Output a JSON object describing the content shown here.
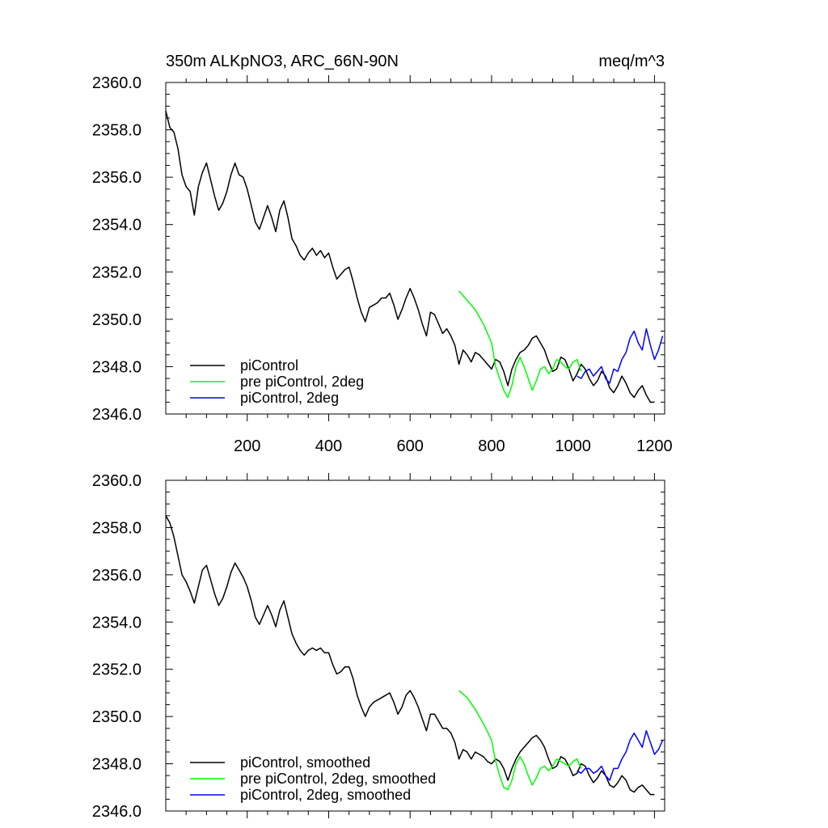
{
  "chart_data": [
    {
      "type": "line",
      "title": "350m ALKpNO3, ARC_66N-90N",
      "units": "meq/m^3",
      "xlim": [
        0,
        1225
      ],
      "ylim": [
        2346.0,
        2360.0
      ],
      "xticks": [
        200,
        400,
        600,
        800,
        1000,
        1200
      ],
      "yticks": [
        "2346.0",
        "2348.0",
        "2350.0",
        "2352.0",
        "2354.0",
        "2356.0",
        "2358.0",
        "2360.0"
      ],
      "legend_position": "bottom-left",
      "series": [
        {
          "name": "piControl",
          "color": "#000000",
          "x": [
            0,
            10,
            20,
            30,
            40,
            50,
            60,
            70,
            80,
            90,
            100,
            110,
            120,
            130,
            140,
            150,
            160,
            170,
            180,
            190,
            200,
            210,
            220,
            230,
            240,
            250,
            260,
            270,
            280,
            290,
            300,
            310,
            320,
            330,
            340,
            350,
            360,
            370,
            380,
            390,
            400,
            410,
            420,
            430,
            440,
            450,
            460,
            470,
            480,
            490,
            500,
            510,
            520,
            530,
            540,
            550,
            560,
            570,
            580,
            590,
            600,
            610,
            620,
            630,
            640,
            650,
            660,
            670,
            680,
            690,
            700,
            710,
            720,
            730,
            740,
            750,
            760,
            770,
            780,
            790,
            800,
            810,
            820,
            830,
            840,
            850,
            860,
            870,
            880,
            890,
            900,
            910,
            920,
            930,
            940,
            950,
            960,
            970,
            980,
            990,
            1000,
            1010,
            1020,
            1030,
            1040,
            1050,
            1060,
            1070,
            1080,
            1090,
            1100,
            1110,
            1120,
            1130,
            1140,
            1150,
            1160,
            1170,
            1180,
            1190,
            1200
          ],
          "values": [
            2358.8,
            2358.1,
            2357.9,
            2357.2,
            2356.1,
            2355.6,
            2355.4,
            2354.4,
            2355.6,
            2356.2,
            2356.6,
            2355.9,
            2355.2,
            2354.6,
            2354.9,
            2355.4,
            2356.1,
            2356.6,
            2356.1,
            2356.0,
            2355.5,
            2354.8,
            2354.1,
            2353.8,
            2354.3,
            2354.8,
            2354.3,
            2353.7,
            2354.6,
            2355.0,
            2354.3,
            2353.4,
            2353.1,
            2352.7,
            2352.5,
            2352.8,
            2353.0,
            2352.7,
            2352.9,
            2352.6,
            2352.8,
            2352.2,
            2351.7,
            2351.9,
            2352.1,
            2352.2,
            2351.6,
            2350.9,
            2350.3,
            2349.9,
            2350.5,
            2350.6,
            2350.7,
            2350.9,
            2350.9,
            2351.1,
            2350.6,
            2350.0,
            2350.4,
            2350.9,
            2351.3,
            2350.9,
            2350.4,
            2349.8,
            2349.3,
            2350.3,
            2350.2,
            2349.8,
            2349.4,
            2349.6,
            2349.3,
            2348.9,
            2348.1,
            2348.7,
            2348.5,
            2348.2,
            2348.6,
            2348.5,
            2348.3,
            2348.1,
            2347.9,
            2348.3,
            2348.2,
            2347.8,
            2347.2,
            2347.9,
            2348.3,
            2348.6,
            2348.7,
            2348.9,
            2349.2,
            2349.3,
            2349.0,
            2348.7,
            2348.2,
            2347.8,
            2347.9,
            2348.4,
            2348.3,
            2347.9,
            2347.4,
            2347.7,
            2348.1,
            2347.9,
            2347.5,
            2347.2,
            2347.4,
            2347.8,
            2347.6,
            2347.1,
            2346.9,
            2347.2,
            2347.6,
            2347.3,
            2346.9,
            2346.7,
            2347.0,
            2347.2,
            2346.8,
            2346.5,
            2346.5
          ]
        },
        {
          "name": "pre piControl, 2deg",
          "color": "#00ff00",
          "x": [
            720,
            740,
            760,
            780,
            800,
            810,
            820,
            830,
            840,
            850,
            860,
            870,
            880,
            890,
            900,
            910,
            920,
            930,
            940,
            950,
            960,
            970,
            980,
            990,
            1000,
            1010,
            1020
          ],
          "values": [
            2351.2,
            2350.8,
            2350.4,
            2349.8,
            2349.0,
            2348.0,
            2347.5,
            2347.0,
            2346.7,
            2347.2,
            2348.0,
            2348.4,
            2348.0,
            2347.5,
            2347.0,
            2347.4,
            2347.9,
            2348.0,
            2347.7,
            2347.9,
            2348.3,
            2348.2,
            2348.0,
            2347.9,
            2348.2,
            2348.3,
            2347.8
          ]
        },
        {
          "name": "piControl, 2deg",
          "color": "#0000ff",
          "x": [
            1010,
            1020,
            1030,
            1040,
            1050,
            1060,
            1070,
            1080,
            1090,
            1100,
            1110,
            1120,
            1130,
            1140,
            1150,
            1160,
            1170,
            1180,
            1190,
            1200,
            1210,
            1220
          ],
          "values": [
            2347.6,
            2347.5,
            2347.8,
            2347.9,
            2347.6,
            2347.8,
            2348.0,
            2347.5,
            2347.3,
            2347.9,
            2347.8,
            2348.3,
            2348.6,
            2349.2,
            2349.5,
            2349.0,
            2348.7,
            2349.6,
            2348.9,
            2348.3,
            2348.7,
            2349.3
          ]
        }
      ]
    },
    {
      "type": "line",
      "xlim": [
        0,
        1225
      ],
      "ylim": [
        2346.0,
        2360.0
      ],
      "yticks": [
        "2346.0",
        "2348.0",
        "2350.0",
        "2352.0",
        "2354.0",
        "2356.0",
        "2358.0",
        "2360.0"
      ],
      "legend_position": "bottom-left",
      "series": [
        {
          "name": "piControl, smoothed",
          "color": "#000000",
          "x": [
            0,
            10,
            20,
            30,
            40,
            50,
            60,
            70,
            80,
            90,
            100,
            110,
            120,
            130,
            140,
            150,
            160,
            170,
            180,
            190,
            200,
            210,
            220,
            230,
            240,
            250,
            260,
            270,
            280,
            290,
            300,
            310,
            320,
            330,
            340,
            350,
            360,
            370,
            380,
            390,
            400,
            410,
            420,
            430,
            440,
            450,
            460,
            470,
            480,
            490,
            500,
            510,
            520,
            530,
            540,
            550,
            560,
            570,
            580,
            590,
            600,
            610,
            620,
            630,
            640,
            650,
            660,
            670,
            680,
            690,
            700,
            710,
            720,
            730,
            740,
            750,
            760,
            770,
            780,
            790,
            800,
            810,
            820,
            830,
            840,
            850,
            860,
            870,
            880,
            890,
            900,
            910,
            920,
            930,
            940,
            950,
            960,
            970,
            980,
            990,
            1000,
            1010,
            1020,
            1030,
            1040,
            1050,
            1060,
            1070,
            1080,
            1090,
            1100,
            1110,
            1120,
            1130,
            1140,
            1150,
            1160,
            1170,
            1180,
            1190,
            1200
          ],
          "values": [
            2358.5,
            2358.2,
            2357.6,
            2356.8,
            2356.0,
            2355.7,
            2355.3,
            2354.8,
            2355.5,
            2356.2,
            2356.4,
            2355.8,
            2355.2,
            2354.7,
            2355.0,
            2355.5,
            2356.1,
            2356.5,
            2356.2,
            2355.9,
            2355.5,
            2354.9,
            2354.2,
            2353.9,
            2354.3,
            2354.7,
            2354.3,
            2353.8,
            2354.5,
            2354.9,
            2354.2,
            2353.5,
            2353.1,
            2352.8,
            2352.6,
            2352.8,
            2352.9,
            2352.8,
            2352.9,
            2352.7,
            2352.7,
            2352.2,
            2351.8,
            2351.9,
            2352.1,
            2352.1,
            2351.6,
            2350.9,
            2350.4,
            2350.0,
            2350.4,
            2350.6,
            2350.7,
            2350.8,
            2350.9,
            2351.0,
            2350.6,
            2350.1,
            2350.4,
            2350.9,
            2351.1,
            2350.8,
            2350.4,
            2349.9,
            2349.4,
            2350.1,
            2350.1,
            2349.8,
            2349.5,
            2349.5,
            2349.3,
            2348.9,
            2348.2,
            2348.6,
            2348.5,
            2348.2,
            2348.5,
            2348.4,
            2348.3,
            2348.1,
            2348.0,
            2348.2,
            2348.1,
            2347.8,
            2347.3,
            2347.8,
            2348.2,
            2348.5,
            2348.7,
            2348.9,
            2349.1,
            2349.2,
            2349.0,
            2348.7,
            2348.2,
            2347.8,
            2347.9,
            2348.3,
            2348.2,
            2347.9,
            2347.5,
            2347.6,
            2348.0,
            2347.9,
            2347.5,
            2347.2,
            2347.4,
            2347.7,
            2347.5,
            2347.1,
            2347.0,
            2347.2,
            2347.5,
            2347.3,
            2346.9,
            2346.8,
            2347.0,
            2347.1,
            2346.9,
            2346.7,
            2346.7
          ]
        },
        {
          "name": "pre piControl, 2deg, smoothed",
          "color": "#00ff00",
          "x": [
            720,
            740,
            760,
            780,
            800,
            810,
            820,
            830,
            840,
            850,
            860,
            870,
            880,
            890,
            900,
            910,
            920,
            930,
            940,
            950,
            960,
            970,
            980,
            990,
            1000,
            1010,
            1020
          ],
          "values": [
            2351.1,
            2350.8,
            2350.3,
            2349.7,
            2349.0,
            2348.1,
            2347.5,
            2347.0,
            2346.9,
            2347.3,
            2348.0,
            2348.3,
            2348.0,
            2347.5,
            2347.1,
            2347.4,
            2347.8,
            2347.9,
            2347.7,
            2347.9,
            2348.2,
            2348.1,
            2348.0,
            2347.9,
            2348.1,
            2348.2,
            2347.8
          ]
        },
        {
          "name": "piControl, 2deg, smoothed",
          "color": "#0000ff",
          "x": [
            1010,
            1020,
            1030,
            1040,
            1050,
            1060,
            1070,
            1080,
            1090,
            1100,
            1110,
            1120,
            1130,
            1140,
            1150,
            1160,
            1170,
            1180,
            1190,
            1200,
            1210,
            1220
          ],
          "values": [
            2347.7,
            2347.6,
            2347.8,
            2347.8,
            2347.6,
            2347.7,
            2347.9,
            2347.5,
            2347.3,
            2347.8,
            2347.8,
            2348.2,
            2348.5,
            2349.0,
            2349.3,
            2349.0,
            2348.7,
            2349.4,
            2348.9,
            2348.4,
            2348.6,
            2349.0
          ]
        }
      ]
    }
  ]
}
